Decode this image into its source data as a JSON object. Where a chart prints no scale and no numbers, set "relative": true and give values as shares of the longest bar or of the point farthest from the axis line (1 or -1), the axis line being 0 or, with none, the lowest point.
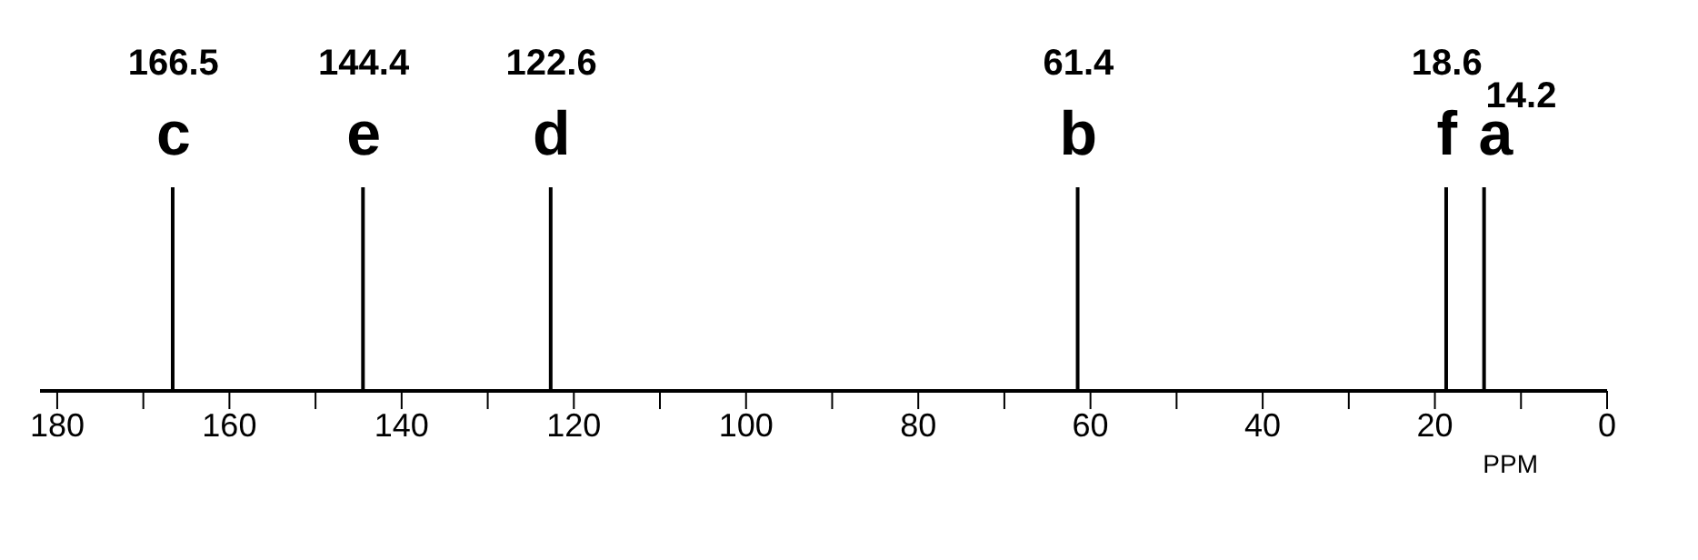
{
  "chart_data": {
    "type": "bar",
    "relative": true,
    "xlabel": "PPM",
    "x": [
      166.5,
      144.4,
      122.6,
      61.4,
      18.6,
      14.2
    ],
    "values": [
      1,
      1,
      1,
      1,
      1,
      1
    ],
    "color": "#000000",
    "xlim": [
      182,
      0
    ],
    "xticks": [
      180,
      {
        "value": 170,
        "label": null
      },
      160,
      {
        "value": 150,
        "label": null
      },
      140,
      {
        "value": 130,
        "label": null
      },
      120,
      {
        "value": 110,
        "label": null
      },
      100,
      {
        "value": 90,
        "label": null
      },
      80,
      {
        "value": 70,
        "label": null
      },
      60,
      {
        "value": 50,
        "label": null
      },
      40,
      {
        "value": 30,
        "label": null
      },
      20,
      {
        "value": 10,
        "label": null
      },
      0
    ],
    "annotations": [
      {
        "text": "166.5",
        "x": 166.5,
        "y": 1
      },
      {
        "text": "c",
        "x": 166.5,
        "y": 1
      },
      {
        "text": "144.4",
        "x": 144.4,
        "y": 1
      },
      {
        "text": "e",
        "x": 144.4,
        "y": 1
      },
      {
        "text": "122.6",
        "x": 122.6,
        "y": 1
      },
      {
        "text": "d",
        "x": 122.6,
        "y": 1
      },
      {
        "text": "61.4",
        "x": 61.4,
        "y": 1
      },
      {
        "text": "b",
        "x": 61.4,
        "y": 1
      },
      {
        "text": "18.6",
        "x": 18.6,
        "y": 1
      },
      {
        "text": "f",
        "x": 18.6,
        "y": 1
      },
      {
        "text": "14.2",
        "x": 14.2,
        "y": 1
      },
      {
        "text": "a",
        "x": 14.2,
        "y": 1
      }
    ]
  }
}
